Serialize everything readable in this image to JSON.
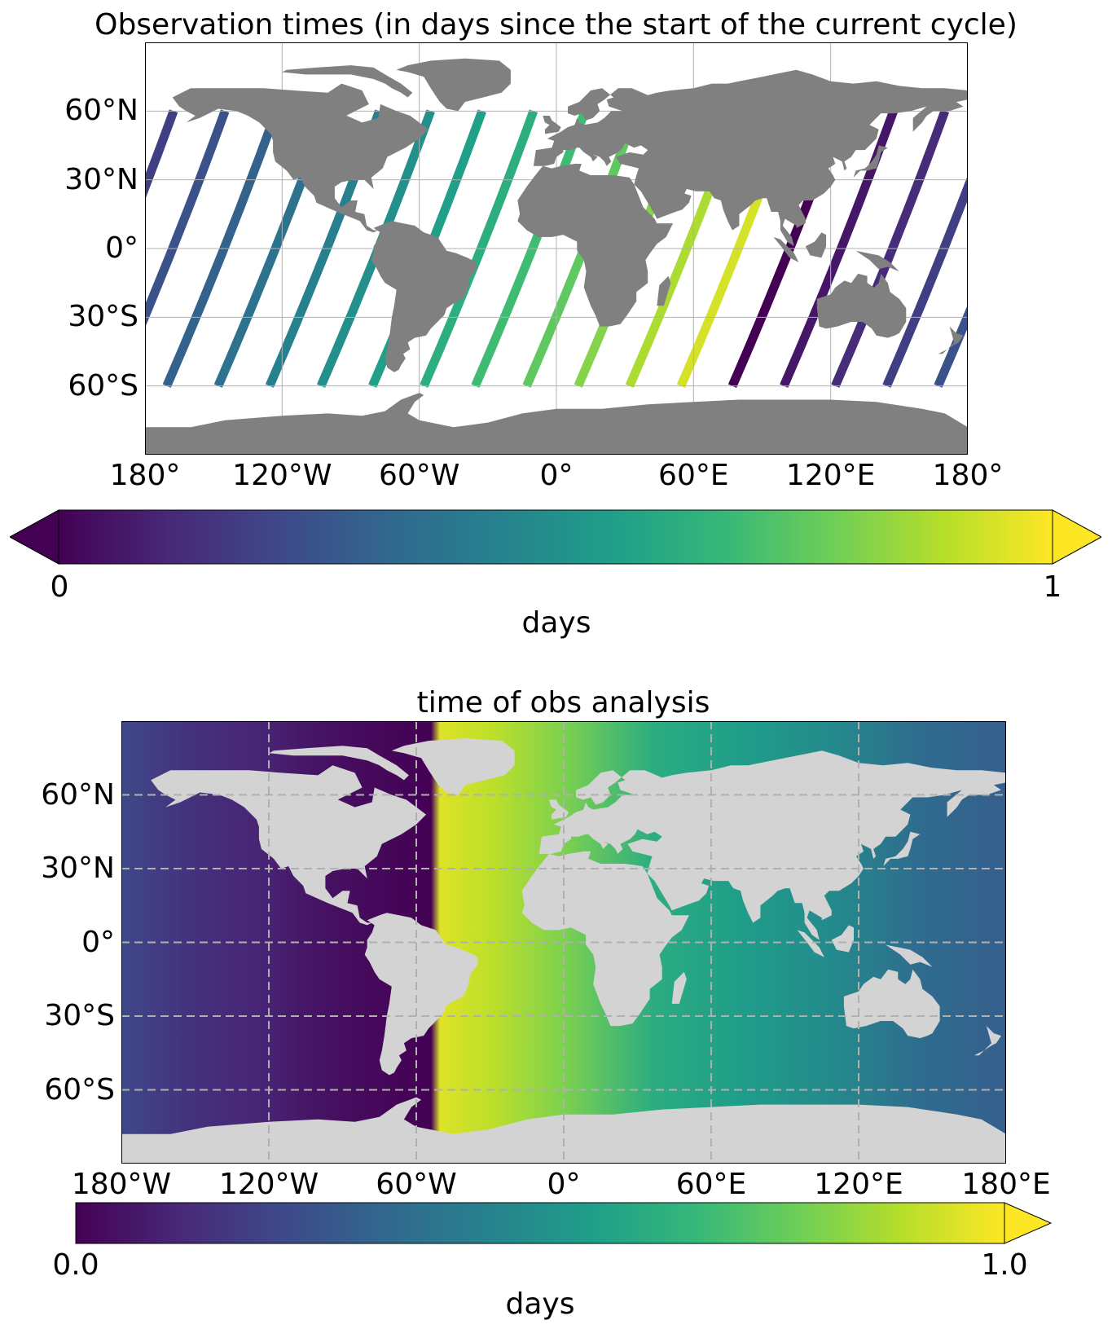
{
  "colormap": [
    "#440154",
    "#482878",
    "#3e4989",
    "#31688e",
    "#26828e",
    "#1f9e89",
    "#35b779",
    "#6ece58",
    "#b5de2b",
    "#fde725"
  ],
  "land_color_top": "#808080",
  "land_color_bottom": "#d3d3d3",
  "panels": [
    {
      "id": "top",
      "title": "Observation times (in days since the start of the current cycle)",
      "map": {
        "projection": "PlateCarree",
        "lon_range": [
          -180,
          180
        ],
        "lat_range": [
          -90,
          90
        ],
        "x_ticks": [
          "180°",
          "120°W",
          "60°W",
          "0°",
          "60°E",
          "120°E",
          "180°"
        ],
        "x_tick_values": [
          -180,
          -120,
          -60,
          0,
          60,
          120,
          180
        ],
        "y_ticks": [
          "60°N",
          "30°N",
          "0°",
          "30°S",
          "60°S"
        ],
        "y_tick_values": [
          60,
          30,
          0,
          -30,
          -60
        ],
        "gridlines": "solid",
        "track_lat_range": [
          -60,
          60
        ]
      },
      "colorbar": {
        "label": "days",
        "ticks": [
          "0",
          "1"
        ],
        "range": [
          0,
          1
        ],
        "extend": "both"
      }
    },
    {
      "id": "bottom",
      "title": "time of obs analysis",
      "map": {
        "projection": "PlateCarree",
        "lon_range": [
          -180,
          180
        ],
        "lat_range": [
          -90,
          90
        ],
        "x_ticks": [
          "180°W",
          "120°W",
          "60°W",
          "0°",
          "60°E",
          "120°E",
          "180°E"
        ],
        "x_tick_values": [
          -180,
          -120,
          -60,
          0,
          60,
          120,
          180
        ],
        "y_ticks": [
          "60°N",
          "30°N",
          "0°",
          "30°S",
          "60°S"
        ],
        "y_tick_values": [
          60,
          30,
          0,
          -30,
          -60
        ],
        "gridlines": "dashed"
      },
      "colorbar": {
        "label": "days",
        "ticks": [
          "0.0",
          "1.0"
        ],
        "range": [
          0,
          1
        ],
        "extend": "max"
      }
    }
  ]
}
